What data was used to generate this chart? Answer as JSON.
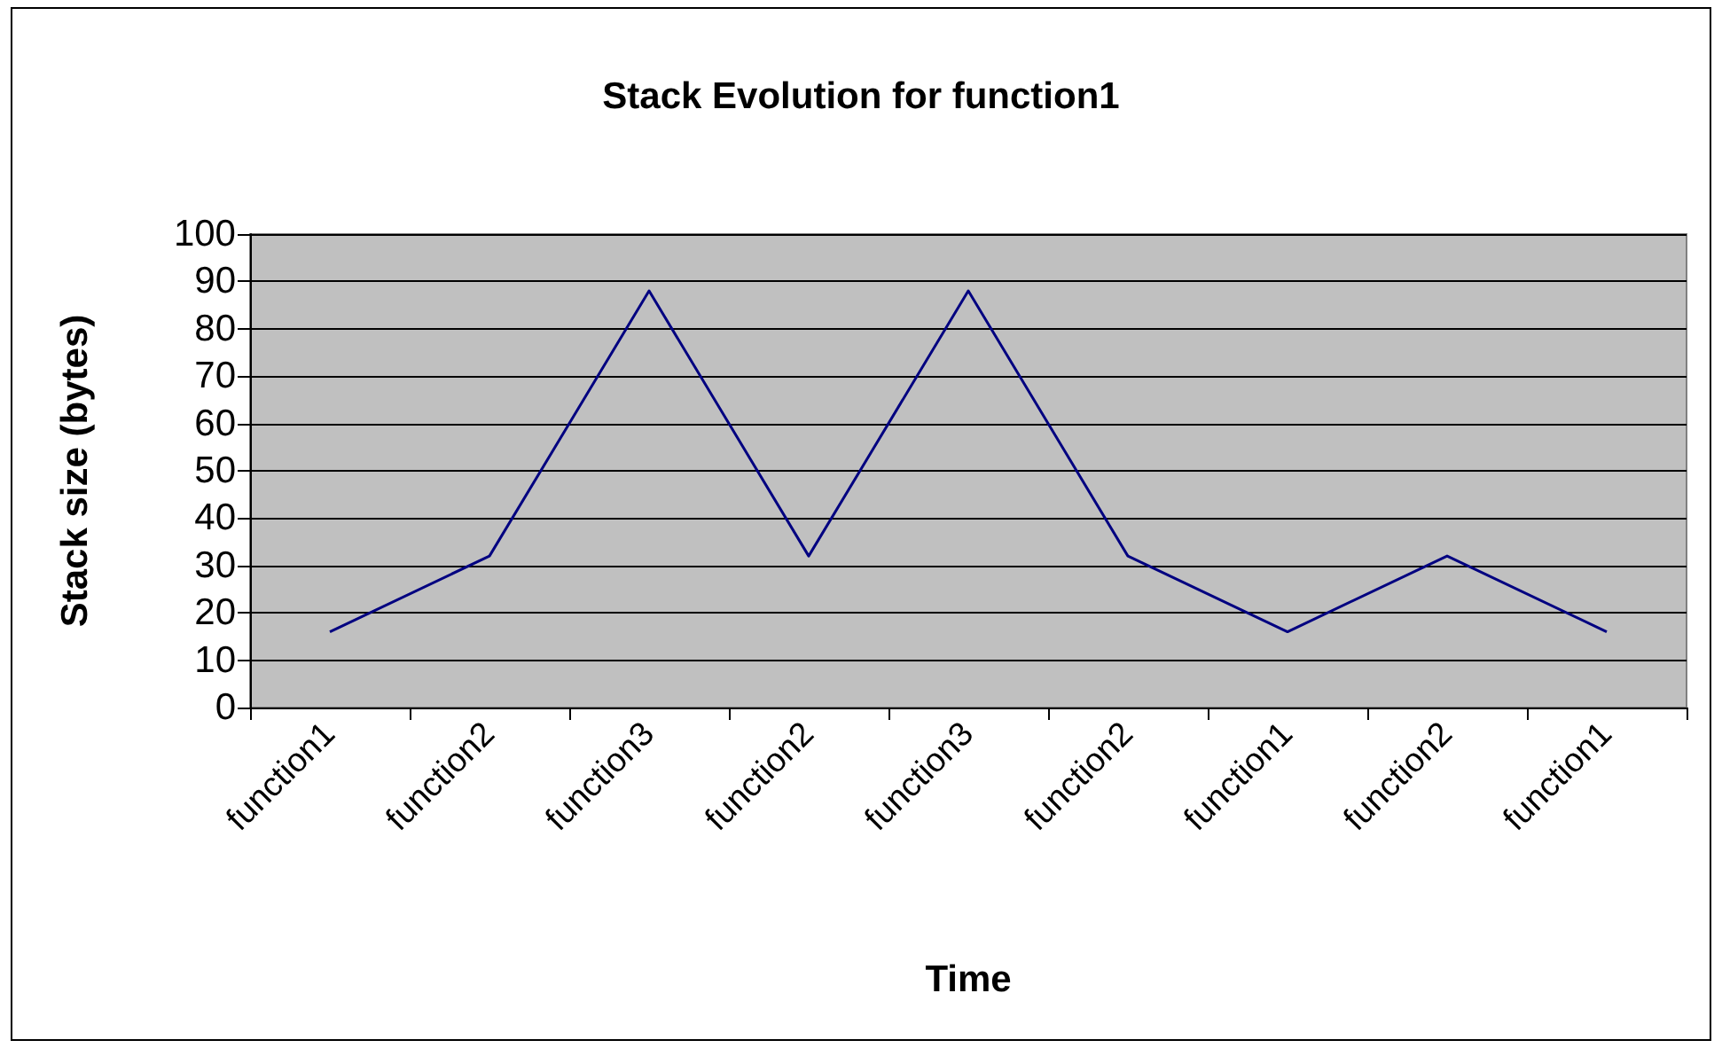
{
  "chart_data": {
    "type": "line",
    "title": "Stack Evolution for function1",
    "xlabel": "Time",
    "ylabel": "Stack size (bytes)",
    "categories": [
      "function1",
      "function2",
      "function3",
      "function2",
      "function3",
      "function2",
      "function1",
      "function2",
      "function1"
    ],
    "series": [
      {
        "color": "#000080",
        "values": [
          16,
          32,
          88,
          32,
          88,
          32,
          16,
          32,
          16
        ]
      }
    ],
    "ylim": [
      0,
      100
    ],
    "yticks": [
      0,
      10,
      20,
      30,
      40,
      50,
      60,
      70,
      80,
      90,
      100
    ],
    "grid": "y",
    "marker": "none",
    "line_style": "solid"
  }
}
